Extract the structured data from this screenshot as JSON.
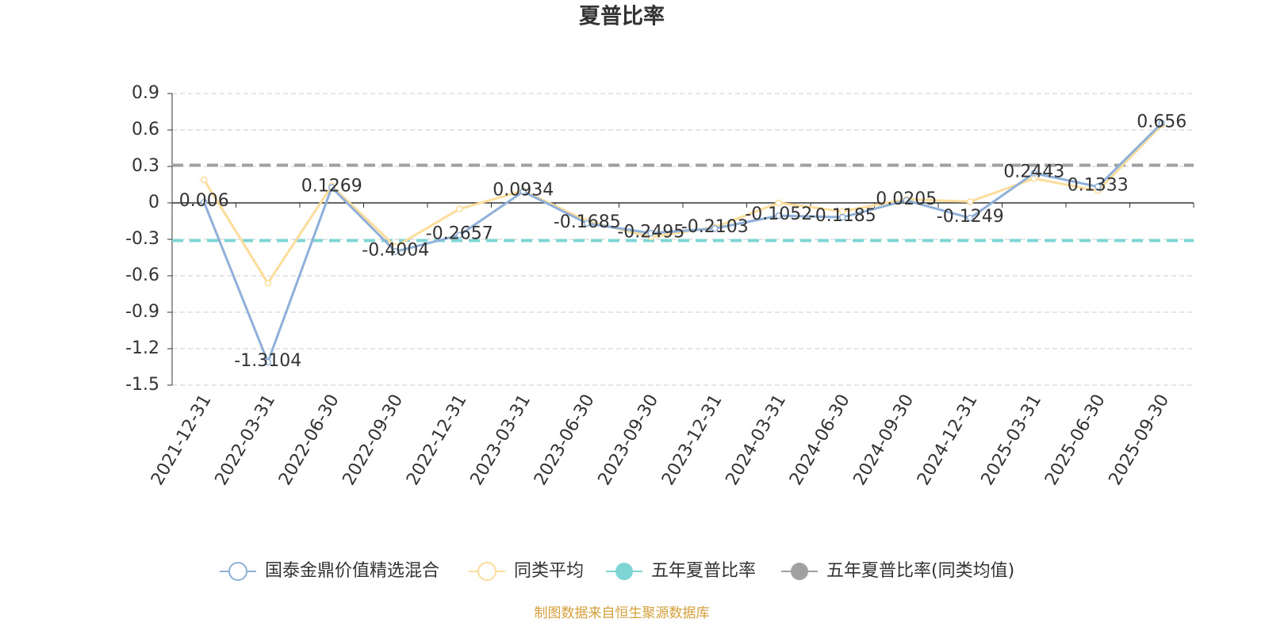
{
  "chart_data": {
    "type": "line",
    "title": "夏普比率",
    "categories": [
      "2021-12-31",
      "2022-03-31",
      "2022-06-30",
      "2022-09-30",
      "2022-12-31",
      "2023-03-31",
      "2023-06-30",
      "2023-09-30",
      "2023-12-31",
      "2024-03-31",
      "2024-06-30",
      "2024-09-30",
      "2024-12-31",
      "2025-03-31",
      "2025-06-30",
      "2025-09-30"
    ],
    "series": [
      {
        "name": "国泰金鼎价值精选混合",
        "color": "#8eb0d9",
        "values": [
          0.006,
          -1.3104,
          0.1269,
          -0.4004,
          -0.2657,
          0.0934,
          -0.1685,
          -0.2495,
          -0.2103,
          -0.1052,
          -0.1185,
          0.0205,
          -0.1249,
          0.2443,
          0.1333,
          0.656
        ]
      },
      {
        "name": "同类平均",
        "color": "#fddc9c",
        "values": [
          0.19,
          -0.66,
          0.14,
          -0.36,
          -0.05,
          0.1,
          -0.15,
          -0.28,
          -0.2,
          0.0,
          -0.07,
          0.03,
          0.01,
          0.2,
          0.1,
          0.64
        ]
      },
      {
        "name": "五年夏普比率",
        "color": "#7fd4d4",
        "value": -0.31
      },
      {
        "name": "五年夏普比率(同类均值)",
        "color": "#a0a0a0",
        "value": 0.31
      }
    ],
    "ylim": [
      -1.5,
      0.9
    ],
    "yticks": [
      0.9,
      0.6,
      0.3,
      0,
      -0.3,
      -0.6,
      -0.9,
      -1.2,
      -1.5
    ],
    "grid": true,
    "footer": "制图数据来自恒生聚源数据库"
  }
}
